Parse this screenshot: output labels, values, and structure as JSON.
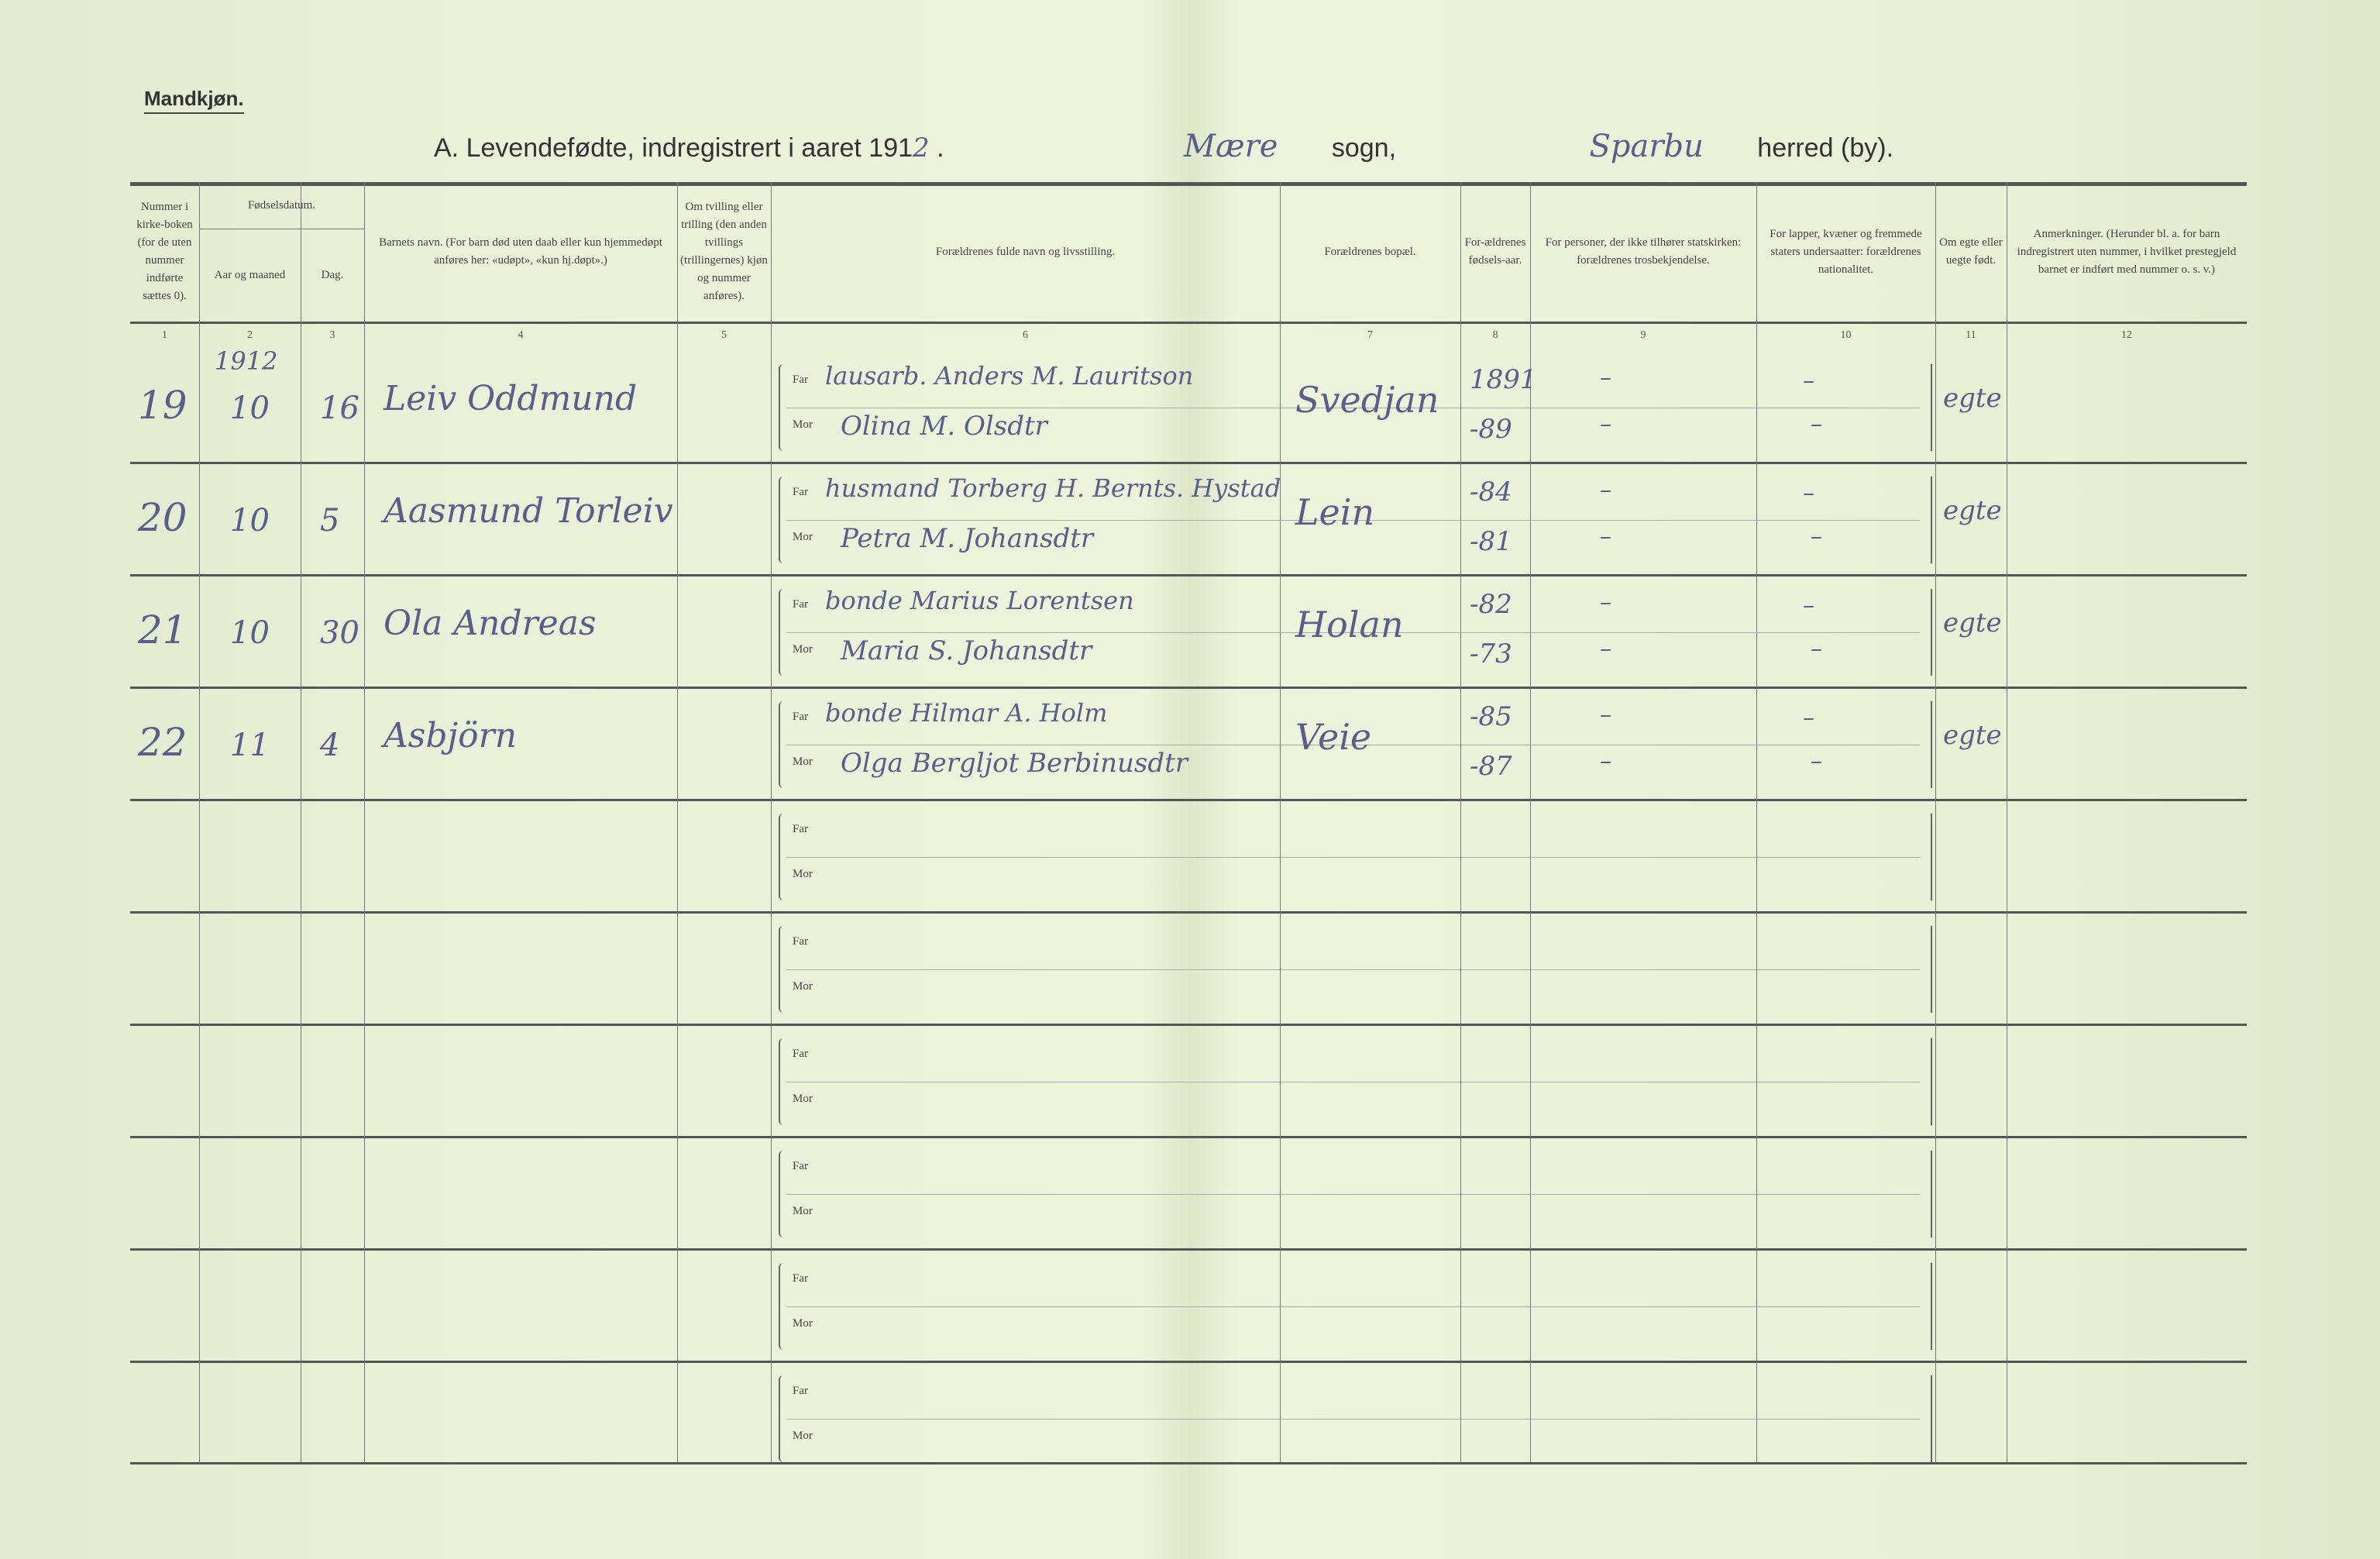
{
  "header": {
    "section": "Mandkjøn.",
    "title_prefix": "A.  Levendefødte, indregistrert i aaret 191",
    "year_digit": "2",
    "sogn_value": "Mære",
    "sogn_label": "sogn,",
    "herred_value": "Sparbu",
    "herred_label": "herred (by)."
  },
  "columns": [
    {
      "num": "1",
      "label": "Nummer i kirke-boken (for de uten nummer indførte sættes 0)."
    },
    {
      "num": "2",
      "label": "Aar og maaned"
    },
    {
      "num": "3",
      "label": "Dag."
    },
    {
      "num": "4",
      "label": "Barnets navn. (For barn død uten daab eller kun hjemmedøpt anføres her: «udøpt», «kun hj.døpt».)"
    },
    {
      "num": "5",
      "label": "Om tvilling eller trilling (den anden tvillings (trillingernes) kjøn og nummer anføres)."
    },
    {
      "num": "6",
      "label": "Forældrenes fulde navn og livsstilling."
    },
    {
      "num": "7",
      "label": "Forældrenes bopæl."
    },
    {
      "num": "8",
      "label": "For-ældrenes fødsels-aar."
    },
    {
      "num": "9",
      "label": "For personer, der ikke tilhører statskirken: forældrenes trosbekjendelse."
    },
    {
      "num": "10",
      "label": "For lapper, kvæner og fremmede staters undersaatter: forældrenes nationalitet."
    },
    {
      "num": "11",
      "label": "Om egte eller uegte født."
    },
    {
      "num": "12",
      "label": "Anmerkninger. (Herunder bl. a. for barn indregistrert uten nummer, i hvilket prestegjeld barnet er indført med nummer o. s. v.)"
    }
  ],
  "fødselsdatum_label": "Fødselsdatum.",
  "far_label": "Far",
  "mor_label": "Mor",
  "year_written": "1912",
  "entries": [
    {
      "nr": "19",
      "month": "10",
      "day": "16",
      "name": "Leiv Oddmund",
      "far": "lausarb. Anders M. Lauritson",
      "mor": "Olina M. Olsdtr",
      "bopel": "Svedjan",
      "far_year": "1891",
      "mor_year": "-89",
      "far_tro": "–",
      "mor_tro": "–",
      "far_nat": "–",
      "mor_nat": "–",
      "egte": "egte"
    },
    {
      "nr": "20",
      "month": "10",
      "day": "5",
      "name": "Aasmund Torleiv",
      "far": "husmand Torberg H. Bernts. Hystad",
      "mor": "Petra M. Johansdtr",
      "bopel": "Lein",
      "far_year": "-84",
      "mor_year": "-81",
      "far_tro": "–",
      "mor_tro": "–",
      "far_nat": "–",
      "mor_nat": "–",
      "egte": "egte"
    },
    {
      "nr": "21",
      "month": "10",
      "day": "30",
      "name": "Ola Andreas",
      "far": "bonde Marius Lorentsen",
      "mor": "Maria S. Johansdtr",
      "bopel": "Holan",
      "far_year": "-82",
      "mor_year": "-73",
      "far_tro": "–",
      "mor_tro": "–",
      "far_nat": "–",
      "mor_nat": "–",
      "egte": "egte"
    },
    {
      "nr": "22",
      "month": "11",
      "day": "4",
      "name": "Asbjörn",
      "far": "bonde Hilmar A. Holm",
      "mor": "Olga Bergljot Berbinusdtr",
      "bopel": "Veie",
      "far_year": "-85",
      "mor_year": "-87",
      "far_tro": "–",
      "mor_tro": "–",
      "far_nat": "–",
      "mor_nat": "–",
      "egte": "egte"
    }
  ],
  "empty_rows": 6
}
